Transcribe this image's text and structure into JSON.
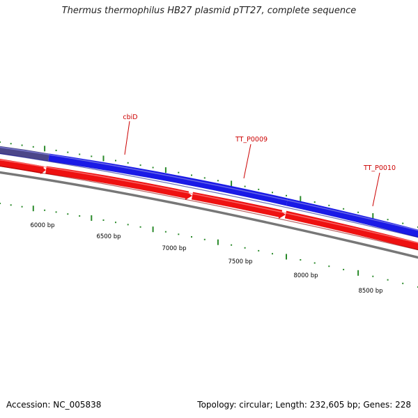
{
  "title": "Thermus thermophilus HB27 plasmid pTT27, complete sequence",
  "footer": {
    "accession": "Accession: NC_005838",
    "summary": "Topology: circular; Length: 232,605 bp; Genes: 228"
  },
  "colors": {
    "forward_gene": "#1a1ae6",
    "forward_gene_highlight": "#4b4689",
    "reverse_gene": "#ee1111",
    "backbone": "#777777",
    "tick": "#2a8a2a",
    "gene_label": "#cc0000",
    "position_label": "#000000"
  },
  "gene_labels": [
    {
      "name": "cbiD"
    },
    {
      "name": "TT_P0009"
    },
    {
      "name": "TT_P0010"
    }
  ],
  "position_labels": [
    "6000 bp",
    "6500 bp",
    "7000 bp",
    "7500 bp",
    "8000 bp",
    "8500 bp"
  ]
}
